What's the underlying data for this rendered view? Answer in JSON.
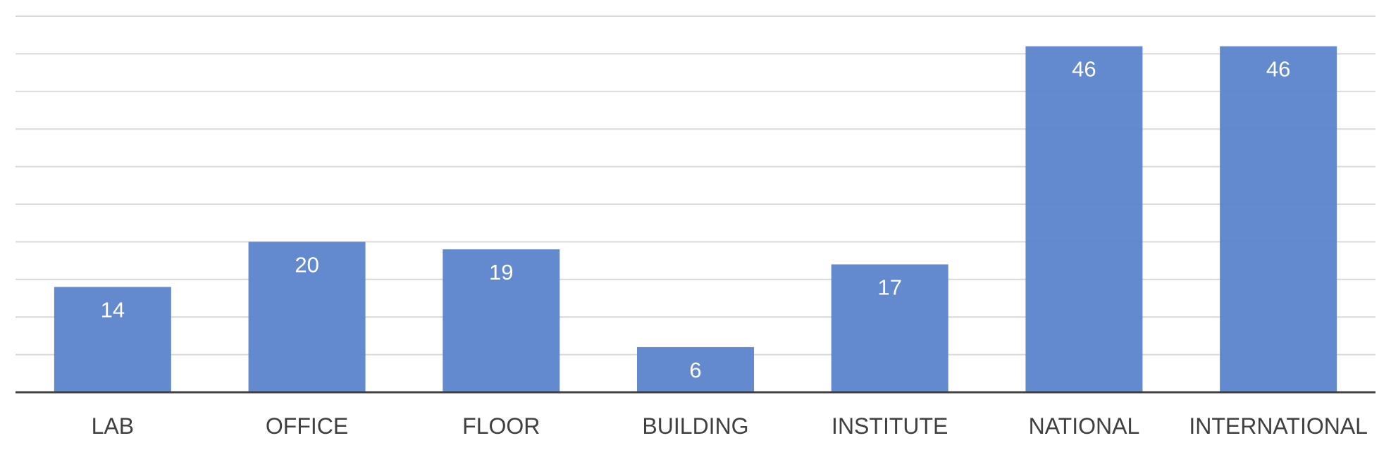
{
  "chart_data": {
    "type": "bar",
    "categories": [
      "LAB",
      "OFFICE",
      "FLOOR",
      "BUILDING",
      "INSTITUTE",
      "NATIONAL",
      "INTERNATIONAL"
    ],
    "values": [
      14,
      20,
      19,
      6,
      17,
      46,
      46
    ],
    "title": "",
    "xlabel": "",
    "ylabel": "",
    "ylim": [
      0,
      50
    ],
    "grid": true,
    "legend": "none",
    "bar_color": "#5b84cc",
    "label_color": "#ffffff",
    "grid_color": "#d9d9d9",
    "axis_color": "#404040"
  }
}
